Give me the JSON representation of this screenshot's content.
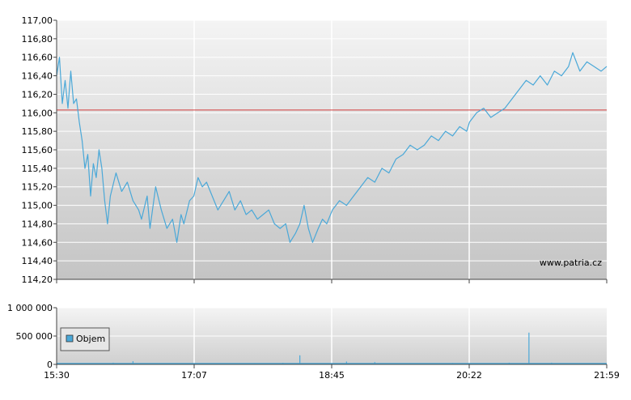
{
  "chart_data": [
    {
      "type": "line",
      "title": "",
      "xlabel": "",
      "ylabel": "",
      "ylim": [
        114.2,
        117.0
      ],
      "y_tick_labels": [
        "117,00",
        "116,80",
        "116,60",
        "116,40",
        "116,20",
        "116,00",
        "115,80",
        "115,60",
        "115,40",
        "115,20",
        "115,00",
        "114,80",
        "114,60",
        "114,40",
        "114,20"
      ],
      "y_ticks": [
        117.0,
        116.8,
        116.6,
        116.4,
        116.2,
        116.0,
        115.8,
        115.6,
        115.4,
        115.2,
        115.0,
        114.8,
        114.6,
        114.4,
        114.2
      ],
      "x_tick_labels": [
        "15:30",
        "17:07",
        "18:45",
        "20:22",
        "21:59"
      ],
      "reference_line": {
        "value": 116.03,
        "color": "#d23c3c"
      },
      "series": [
        {
          "color": "#4aa8d8",
          "points": [
            [
              "15:30",
              116.4
            ],
            [
              "15:32",
              116.6
            ],
            [
              "15:34",
              116.1
            ],
            [
              "15:36",
              116.35
            ],
            [
              "15:38",
              116.05
            ],
            [
              "15:40",
              116.45
            ],
            [
              "15:42",
              116.1
            ],
            [
              "15:44",
              116.15
            ],
            [
              "15:46",
              115.9
            ],
            [
              "15:48",
              115.7
            ],
            [
              "15:50",
              115.4
            ],
            [
              "15:52",
              115.55
            ],
            [
              "15:54",
              115.1
            ],
            [
              "15:56",
              115.45
            ],
            [
              "15:58",
              115.3
            ],
            [
              "16:00",
              115.6
            ],
            [
              "16:02",
              115.4
            ],
            [
              "16:04",
              115.05
            ],
            [
              "16:06",
              114.8
            ],
            [
              "16:08",
              115.1
            ],
            [
              "16:12",
              115.35
            ],
            [
              "16:16",
              115.15
            ],
            [
              "16:20",
              115.25
            ],
            [
              "16:24",
              115.05
            ],
            [
              "16:28",
              114.95
            ],
            [
              "16:30",
              114.85
            ],
            [
              "16:34",
              115.1
            ],
            [
              "16:36",
              114.75
            ],
            [
              "16:40",
              115.2
            ],
            [
              "16:44",
              114.95
            ],
            [
              "16:48",
              114.75
            ],
            [
              "16:52",
              114.85
            ],
            [
              "16:55",
              114.6
            ],
            [
              "16:58",
              114.9
            ],
            [
              "17:00",
              114.8
            ],
            [
              "17:04",
              115.05
            ],
            [
              "17:07",
              115.1
            ],
            [
              "17:10",
              115.3
            ],
            [
              "17:13",
              115.2
            ],
            [
              "17:16",
              115.25
            ],
            [
              "17:20",
              115.1
            ],
            [
              "17:24",
              114.95
            ],
            [
              "17:28",
              115.05
            ],
            [
              "17:32",
              115.15
            ],
            [
              "17:36",
              114.95
            ],
            [
              "17:40",
              115.05
            ],
            [
              "17:44",
              114.9
            ],
            [
              "17:48",
              114.95
            ],
            [
              "17:52",
              114.85
            ],
            [
              "17:56",
              114.9
            ],
            [
              "18:00",
              114.95
            ],
            [
              "18:04",
              114.8
            ],
            [
              "18:08",
              114.75
            ],
            [
              "18:12",
              114.8
            ],
            [
              "18:15",
              114.6
            ],
            [
              "18:19",
              114.7
            ],
            [
              "18:22",
              114.8
            ],
            [
              "18:25",
              115.0
            ],
            [
              "18:28",
              114.75
            ],
            [
              "18:31",
              114.6
            ],
            [
              "18:35",
              114.75
            ],
            [
              "18:38",
              114.85
            ],
            [
              "18:41",
              114.8
            ],
            [
              "18:45",
              114.95
            ],
            [
              "18:50",
              115.05
            ],
            [
              "18:55",
              115.0
            ],
            [
              "19:00",
              115.1
            ],
            [
              "19:05",
              115.2
            ],
            [
              "19:10",
              115.3
            ],
            [
              "19:15",
              115.25
            ],
            [
              "19:20",
              115.4
            ],
            [
              "19:25",
              115.35
            ],
            [
              "19:30",
              115.5
            ],
            [
              "19:35",
              115.55
            ],
            [
              "19:40",
              115.65
            ],
            [
              "19:45",
              115.6
            ],
            [
              "19:50",
              115.65
            ],
            [
              "19:55",
              115.75
            ],
            [
              "20:00",
              115.7
            ],
            [
              "20:05",
              115.8
            ],
            [
              "20:10",
              115.75
            ],
            [
              "20:15",
              115.85
            ],
            [
              "20:20",
              115.8
            ],
            [
              "20:22",
              115.9
            ],
            [
              "20:27",
              116.0
            ],
            [
              "20:32",
              116.05
            ],
            [
              "20:37",
              115.95
            ],
            [
              "20:42",
              116.0
            ],
            [
              "20:47",
              116.05
            ],
            [
              "20:52",
              116.15
            ],
            [
              "20:57",
              116.25
            ],
            [
              "21:02",
              116.35
            ],
            [
              "21:07",
              116.3
            ],
            [
              "21:12",
              116.4
            ],
            [
              "21:17",
              116.3
            ],
            [
              "21:22",
              116.45
            ],
            [
              "21:27",
              116.4
            ],
            [
              "21:32",
              116.5
            ],
            [
              "21:35",
              116.65
            ],
            [
              "21:40",
              116.45
            ],
            [
              "21:45",
              116.55
            ],
            [
              "21:50",
              116.5
            ],
            [
              "21:55",
              116.45
            ],
            [
              "21:59",
              116.5
            ]
          ]
        }
      ]
    },
    {
      "type": "bar",
      "title": "",
      "xlabel": "",
      "ylabel": "",
      "ylim": [
        0,
        1000000
      ],
      "y_tick_labels": [
        "1 000 000",
        "500 000",
        "0"
      ],
      "y_ticks": [
        1000000,
        500000,
        0
      ],
      "x_tick_labels": [
        "15:30",
        "17:07",
        "18:45",
        "20:22",
        "21:59"
      ],
      "legend": {
        "position": "left",
        "entries": [
          "Objem"
        ]
      },
      "series": [
        {
          "name": "Objem",
          "color": "#4aa8d8",
          "points": [
            [
              "15:50",
              15000
            ],
            [
              "16:10",
              30000
            ],
            [
              "16:24",
              55000
            ],
            [
              "16:40",
              20000
            ],
            [
              "17:00",
              15000
            ],
            [
              "17:20",
              18000
            ],
            [
              "17:50",
              22000
            ],
            [
              "18:10",
              28000
            ],
            [
              "18:22",
              160000
            ],
            [
              "18:40",
              20000
            ],
            [
              "18:55",
              50000
            ],
            [
              "19:15",
              40000
            ],
            [
              "19:40",
              22000
            ],
            [
              "20:10",
              25000
            ],
            [
              "20:35",
              18000
            ],
            [
              "20:50",
              30000
            ],
            [
              "21:04",
              560000
            ],
            [
              "21:20",
              30000
            ],
            [
              "21:40",
              20000
            ],
            [
              "21:55",
              15000
            ]
          ]
        }
      ]
    }
  ],
  "watermark": "www.patria.cz",
  "colors": {
    "grid_major": "#ffffff",
    "frame": "#444444",
    "plot_bg_top": "#f4f4f4",
    "plot_bg_bottom": "#c6c6c6"
  }
}
